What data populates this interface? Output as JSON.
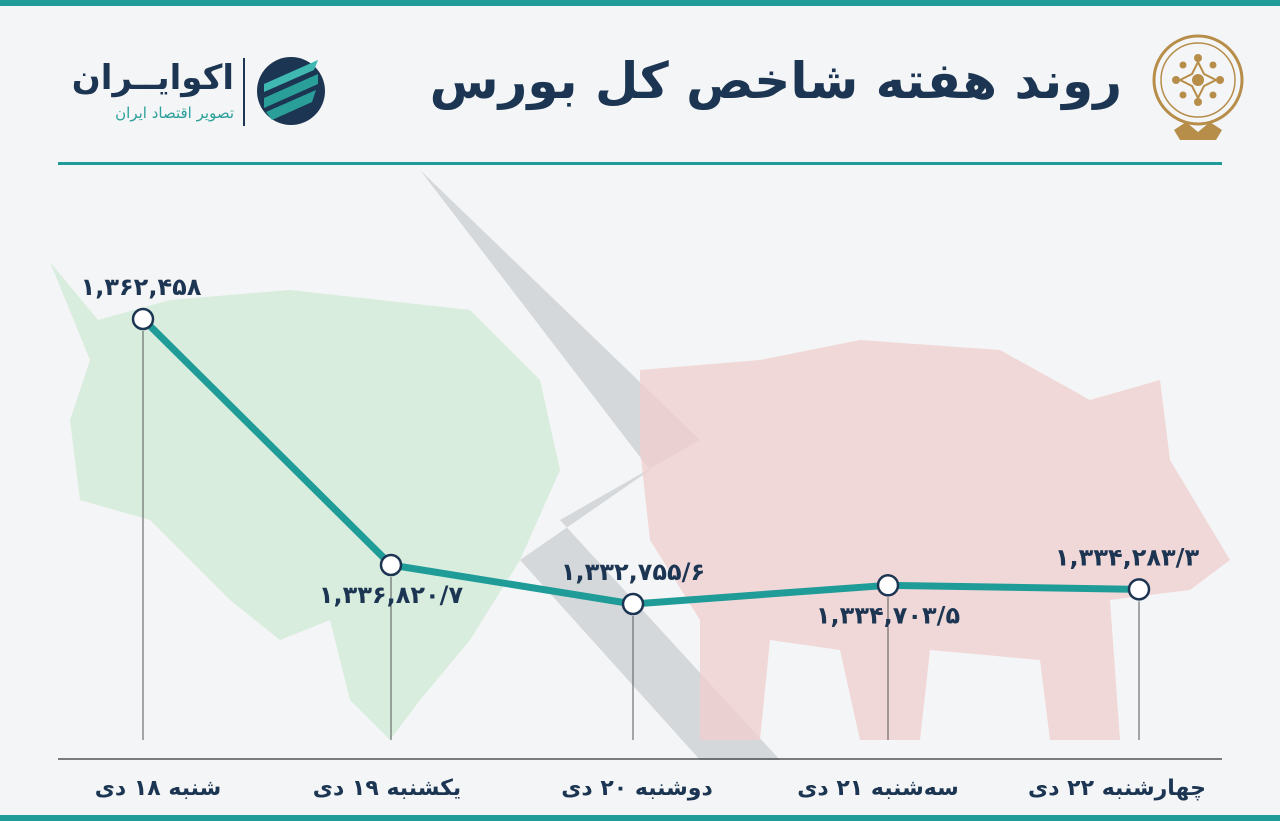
{
  "header": {
    "title": "روند هفته شاخص کل بورس",
    "brand_name": "اکوایــران",
    "brand_tagline": "تصویر اقتصاد ایران"
  },
  "colors": {
    "accent": "#1f9c98",
    "navy": "#1c3552",
    "seal_gold": "#b78d4a"
  },
  "chart_data": {
    "type": "line",
    "categories": [
      "شنبه ۱۸ دی",
      "یکشنبه ۱۹ دی",
      "دوشنبه ۲۰ دی",
      "سه‌شنبه ۲۱ دی",
      "چهارشنبه ۲۲ دی"
    ],
    "values": [
      1362458,
      1336820.7,
      1332755.6,
      1334703.5,
      1334283.3
    ],
    "data_labels": [
      "۱,۳۶۲,۴۵۸",
      "۱,۳۳۶,۸۲۰/۷",
      "۱,۳۳۲,۷۵۵/۶",
      "۱,۳۳۴,۷۰۳/۵",
      "۱,۳۳۴,۲۸۳/۳"
    ],
    "label_positions": [
      "above",
      "below",
      "above",
      "below",
      "above"
    ],
    "line_color": "#1f9c98",
    "grid": false,
    "legend": "none"
  }
}
